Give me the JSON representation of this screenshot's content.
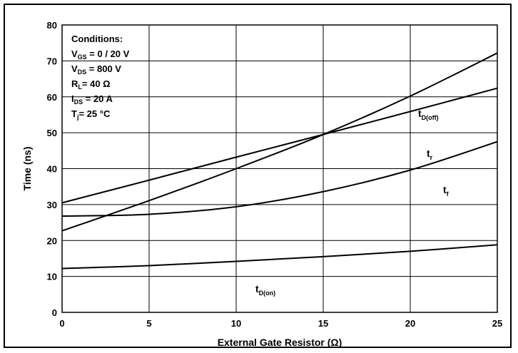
{
  "chart_data": {
    "type": "line",
    "xlabel": "External Gate Resistor (Ω)",
    "ylabel": "Time (ns)",
    "xlim": [
      0,
      25
    ],
    "ylim": [
      0,
      80
    ],
    "xticks": [
      "0",
      "5",
      "10",
      "15",
      "20",
      "25"
    ],
    "yticks": [
      "0",
      "10",
      "20",
      "30",
      "40",
      "50",
      "60",
      "70",
      "80"
    ],
    "grid": true,
    "conditions": {
      "title": "Conditions:",
      "lines": [
        {
          "main": "V",
          "sub": "GS",
          "rest": " = 0 / 20 V"
        },
        {
          "main": "V",
          "sub": "DS",
          "rest": " = 800 V"
        },
        {
          "main": "R",
          "sub": "L",
          "rest": "= 40 Ω"
        },
        {
          "main": "I",
          "sub": "DS",
          "rest": " = 20 A"
        },
        {
          "main": "T",
          "sub": "j",
          "rest": "= 25 °C"
        }
      ]
    },
    "series": [
      {
        "main": "t",
        "sub": "D(off)",
        "x": [
          0,
          5,
          10,
          15,
          20,
          25
        ],
        "y": [
          22.7,
          31.1,
          40.0,
          49.5,
          60.2,
          72.2
        ]
      },
      {
        "main": "t",
        "sub": "r",
        "x": [
          0,
          5,
          10,
          15,
          20,
          25
        ],
        "y": [
          30.5,
          36.8,
          43.2,
          49.5,
          55.9,
          62.4
        ]
      },
      {
        "main": "t",
        "sub": "f",
        "x": [
          0,
          5,
          10,
          15,
          20,
          25
        ],
        "y": [
          26.8,
          27.3,
          29.4,
          33.6,
          39.6,
          47.5
        ]
      },
      {
        "main": "t",
        "sub": "D(on)",
        "x": [
          0,
          5,
          10,
          15,
          20,
          25
        ],
        "y": [
          12.2,
          13.0,
          14.2,
          15.5,
          17.0,
          18.8
        ]
      }
    ]
  }
}
